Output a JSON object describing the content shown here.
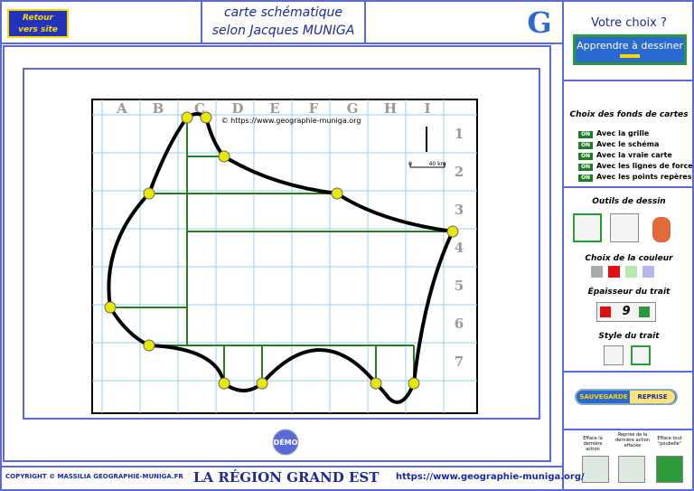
{
  "header": {
    "back_button": [
      "Retour",
      "vers site"
    ],
    "title": [
      "carte schématique",
      "selon Jacques MUNIGA"
    ],
    "logo": "G",
    "choice_title": "Votre choix ?",
    "choice_button": "Apprendre à dessiner"
  },
  "map": {
    "columns": [
      "A",
      "B",
      "C",
      "D",
      "E",
      "F",
      "G",
      "H",
      "I"
    ],
    "rows": [
      "1",
      "2",
      "3",
      "4",
      "5",
      "6",
      "7"
    ],
    "copyright": "© https://www.geographie-muniga.org",
    "scale": [
      "0",
      "40 km"
    ],
    "demo": "DÉMO"
  },
  "panel": {
    "backgrounds_title": "Choix des fonds de cartes",
    "toggle": "ON",
    "backgrounds": [
      "Avec la grille",
      "Avec le schéma",
      "Avec la vraie carte",
      "Avec les lignes de force",
      "Avec les points repères"
    ],
    "tools_title": "Outils de dessin",
    "color_title": "Choix de la couleur",
    "thickness_title": "Épaisseur du trait",
    "thickness": "9",
    "style_title": "Style du trait",
    "save": "SAUVEGARDE",
    "resume": "REPRISE",
    "undo": "Efface la dernière action",
    "redo": "Reprise de la dernière action effacée",
    "clear": "Efface tout \"poubelle\""
  },
  "footer": {
    "copyright": "COPYRIGHT © MASSILIA GEOGRAPHIE-MUNIGA.FR",
    "region": "LA RÉGION GRAND EST",
    "url": "https://www.geographie-muniga.org/"
  }
}
